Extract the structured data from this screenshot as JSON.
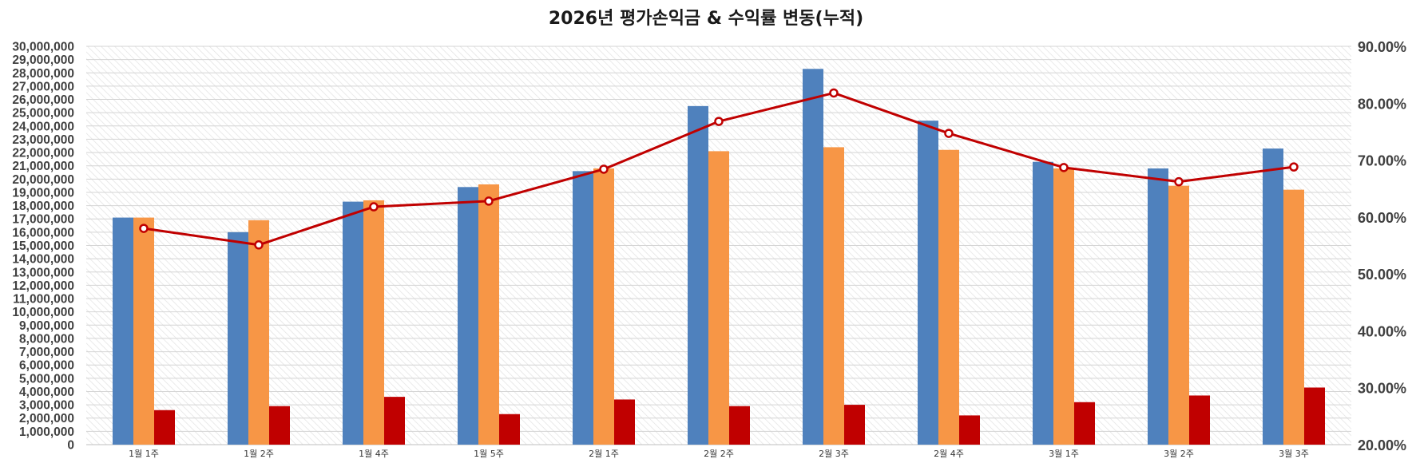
{
  "chart_data": {
    "type": "bar",
    "title": "2026년 평가손익금 & 수익률 변동(누적)",
    "categories": [
      "1월 1주",
      "1월 2주",
      "1월 4주",
      "1월 5주",
      "2월 1주",
      "2월 2주",
      "2월 3주",
      "2월 4주",
      "3월 1주",
      "3월 2주",
      "3월 3주"
    ],
    "series": [
      {
        "name": "series-blue",
        "kind": "bar",
        "axis": "left",
        "color": "#4F81BD",
        "values": [
          17100000,
          16000000,
          18300000,
          19400000,
          20600000,
          25500000,
          28300000,
          24400000,
          21300000,
          20800000,
          22300000
        ]
      },
      {
        "name": "series-orange",
        "kind": "bar",
        "axis": "left",
        "color": "#F79646",
        "values": [
          17100000,
          16900000,
          18400000,
          19600000,
          20800000,
          22100000,
          22400000,
          22200000,
          20800000,
          19500000,
          19200000
        ]
      },
      {
        "name": "series-red",
        "kind": "bar",
        "axis": "left",
        "color": "#C00000",
        "values": [
          2600000,
          2900000,
          3600000,
          2300000,
          3400000,
          2900000,
          3000000,
          2200000,
          3200000,
          3700000,
          4300000
        ]
      },
      {
        "name": "series-rate",
        "kind": "line",
        "axis": "right",
        "color": "#C00000",
        "values": [
          58.0,
          55.1,
          61.8,
          62.8,
          68.4,
          76.8,
          81.8,
          74.7,
          68.7,
          66.2,
          68.8
        ]
      }
    ],
    "y_left": {
      "min": 0,
      "max": 30000000,
      "step": 1000000,
      "tick_labels": [
        "0",
        "1,000,000",
        "2,000,000",
        "3,000,000",
        "4,000,000",
        "5,000,000",
        "6,000,000",
        "7,000,000",
        "8,000,000",
        "9,000,000",
        "10,000,000",
        "11,000,000",
        "12,000,000",
        "13,000,000",
        "14,000,000",
        "15,000,000",
        "16,000,000",
        "17,000,000",
        "18,000,000",
        "19,000,000",
        "20,000,000",
        "21,000,000",
        "22,000,000",
        "23,000,000",
        "24,000,000",
        "25,000,000",
        "26,000,000",
        "27,000,000",
        "28,000,000",
        "29,000,000",
        "30,000,000"
      ]
    },
    "y_right": {
      "min": 20,
      "max": 90,
      "step": 10,
      "tick_labels": [
        "20.00%",
        "30.00%",
        "40.00%",
        "50.00%",
        "60.00%",
        "70.00%",
        "80.00%",
        "90.00%"
      ]
    },
    "grid": true,
    "legend": "none",
    "xlabel": "",
    "ylabel": ""
  }
}
